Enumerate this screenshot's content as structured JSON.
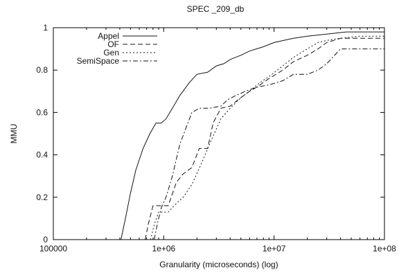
{
  "chart_data": {
    "type": "line",
    "title": "SPEC _209_db",
    "xlabel": "Granularity (microseconds) (log)",
    "ylabel": "MMU",
    "x_scale": "log",
    "xlim": [
      100000,
      100000000
    ],
    "ylim": [
      0,
      1
    ],
    "x_ticks": [
      {
        "value": 100000,
        "label": "100000"
      },
      {
        "value": 1000000,
        "label": "1e+06"
      },
      {
        "value": 10000000,
        "label": "1e+07"
      },
      {
        "value": 100000000,
        "label": "1e+08"
      }
    ],
    "y_ticks": [
      {
        "value": 0,
        "label": "0"
      },
      {
        "value": 0.2,
        "label": "0.2"
      },
      {
        "value": 0.4,
        "label": "0.4"
      },
      {
        "value": 0.6,
        "label": "0.6"
      },
      {
        "value": 0.8,
        "label": "0.8"
      },
      {
        "value": 1,
        "label": "1"
      }
    ],
    "grid": false,
    "legend_position": "top-left",
    "series": [
      {
        "name": "Appel",
        "style": "solid",
        "points": [
          [
            410000,
            0
          ],
          [
            450000,
            0.1
          ],
          [
            500000,
            0.22
          ],
          [
            560000,
            0.33
          ],
          [
            650000,
            0.43
          ],
          [
            750000,
            0.5
          ],
          [
            850000,
            0.55
          ],
          [
            950000,
            0.55
          ],
          [
            1050000,
            0.57
          ],
          [
            1200000,
            0.62
          ],
          [
            1400000,
            0.68
          ],
          [
            1700000,
            0.74
          ],
          [
            2000000,
            0.78
          ],
          [
            2500000,
            0.79
          ],
          [
            3000000,
            0.82
          ],
          [
            3500000,
            0.83
          ],
          [
            4000000,
            0.85
          ],
          [
            5000000,
            0.87
          ],
          [
            6000000,
            0.89
          ],
          [
            8000000,
            0.91
          ],
          [
            10000000,
            0.93
          ],
          [
            15000000,
            0.95
          ],
          [
            20000000,
            0.96
          ],
          [
            30000000,
            0.97
          ],
          [
            45000000,
            0.98
          ],
          [
            60000000,
            0.98
          ],
          [
            100000000,
            0.98
          ]
        ]
      },
      {
        "name": "OF",
        "style": "dashed",
        "points": [
          [
            680000,
            0
          ],
          [
            730000,
            0.08
          ],
          [
            800000,
            0.16
          ],
          [
            900000,
            0.16
          ],
          [
            1100000,
            0.16
          ],
          [
            1300000,
            0.27
          ],
          [
            1500000,
            0.31
          ],
          [
            1800000,
            0.34
          ],
          [
            2100000,
            0.43
          ],
          [
            2500000,
            0.43
          ],
          [
            2800000,
            0.55
          ],
          [
            3300000,
            0.62
          ],
          [
            4000000,
            0.63
          ],
          [
            5000000,
            0.67
          ],
          [
            6000000,
            0.7
          ],
          [
            7000000,
            0.72
          ],
          [
            9000000,
            0.76
          ],
          [
            12000000,
            0.8
          ],
          [
            15000000,
            0.84
          ],
          [
            20000000,
            0.87
          ],
          [
            25000000,
            0.9
          ],
          [
            30000000,
            0.93
          ],
          [
            40000000,
            0.95
          ],
          [
            60000000,
            0.95
          ],
          [
            100000000,
            0.95
          ]
        ]
      },
      {
        "name": "Gen",
        "style": "dotted",
        "points": [
          [
            760000,
            0
          ],
          [
            820000,
            0.07
          ],
          [
            900000,
            0.13
          ],
          [
            1100000,
            0.13
          ],
          [
            1300000,
            0.17
          ],
          [
            1500000,
            0.2
          ],
          [
            1800000,
            0.26
          ],
          [
            2200000,
            0.36
          ],
          [
            2700000,
            0.47
          ],
          [
            3300000,
            0.57
          ],
          [
            4000000,
            0.62
          ],
          [
            5000000,
            0.67
          ],
          [
            6000000,
            0.7
          ],
          [
            7000000,
            0.73
          ],
          [
            9000000,
            0.77
          ],
          [
            12000000,
            0.82
          ],
          [
            15000000,
            0.86
          ],
          [
            20000000,
            0.9
          ],
          [
            25000000,
            0.93
          ],
          [
            30000000,
            0.94
          ],
          [
            40000000,
            0.95
          ],
          [
            60000000,
            0.96
          ],
          [
            100000000,
            0.96
          ]
        ]
      },
      {
        "name": "SemiSpace",
        "style": "dash-dot",
        "points": [
          [
            820000,
            0
          ],
          [
            880000,
            0.08
          ],
          [
            950000,
            0.15
          ],
          [
            1050000,
            0.2
          ],
          [
            1200000,
            0.3
          ],
          [
            1400000,
            0.45
          ],
          [
            1600000,
            0.53
          ],
          [
            1800000,
            0.6
          ],
          [
            2100000,
            0.62
          ],
          [
            2600000,
            0.62
          ],
          [
            3300000,
            0.63
          ],
          [
            3800000,
            0.66
          ],
          [
            4500000,
            0.68
          ],
          [
            5500000,
            0.7
          ],
          [
            7000000,
            0.72
          ],
          [
            9000000,
            0.73
          ],
          [
            12000000,
            0.75
          ],
          [
            15000000,
            0.78
          ],
          [
            20000000,
            0.78
          ],
          [
            25000000,
            0.8
          ],
          [
            30000000,
            0.83
          ],
          [
            40000000,
            0.9
          ],
          [
            60000000,
            0.9
          ],
          [
            100000000,
            0.9
          ]
        ]
      }
    ]
  }
}
